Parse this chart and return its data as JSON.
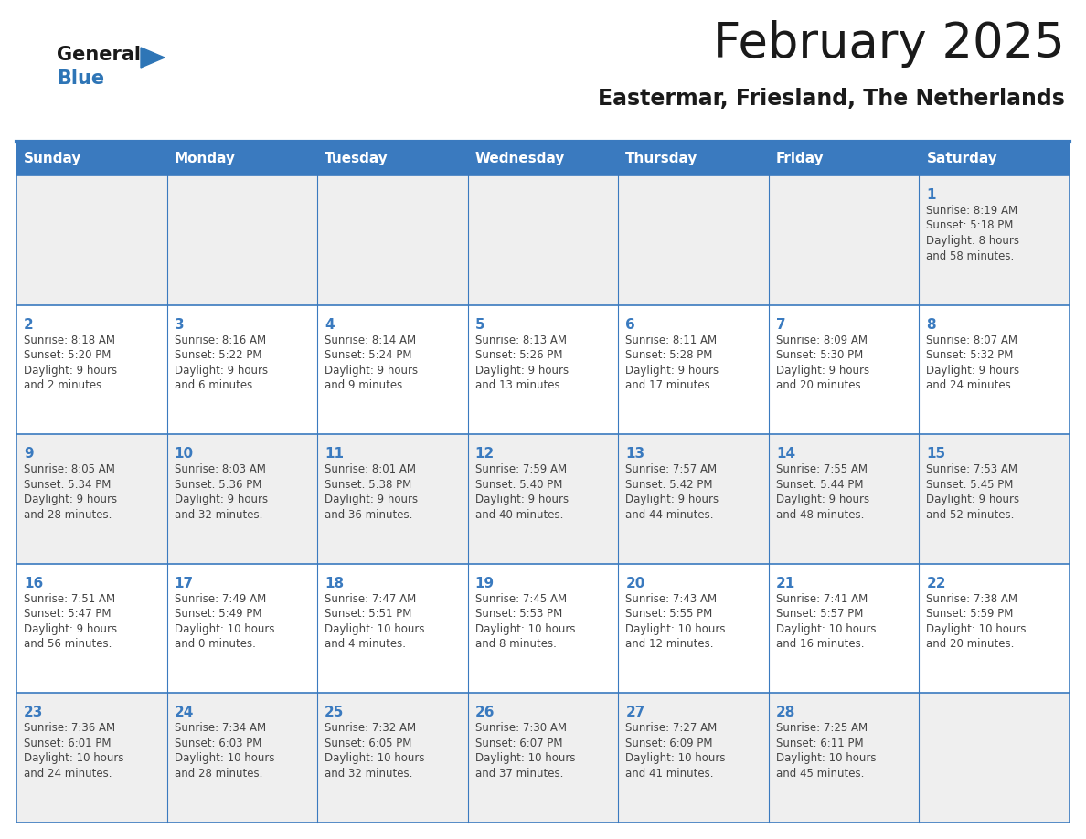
{
  "title": "February 2025",
  "subtitle": "Eastermar, Friesland, The Netherlands",
  "days_of_week": [
    "Sunday",
    "Monday",
    "Tuesday",
    "Wednesday",
    "Thursday",
    "Friday",
    "Saturday"
  ],
  "header_bg": "#3a7abf",
  "header_text": "#ffffff",
  "cell_bg_light": "#efefef",
  "cell_bg_white": "#ffffff",
  "cell_border": "#3a7abf",
  "day_number_color": "#3a7abf",
  "text_color": "#444444",
  "title_color": "#1a1a1a",
  "logo_general_color": "#1a1a1a",
  "logo_blue_color": "#2e75b6",
  "calendar_data": [
    {
      "day": 1,
      "col": 6,
      "row": 0,
      "sunrise": "8:19 AM",
      "sunset": "5:18 PM",
      "daylight_h": "8 hours",
      "daylight_m": "and 58 minutes."
    },
    {
      "day": 2,
      "col": 0,
      "row": 1,
      "sunrise": "8:18 AM",
      "sunset": "5:20 PM",
      "daylight_h": "9 hours",
      "daylight_m": "and 2 minutes."
    },
    {
      "day": 3,
      "col": 1,
      "row": 1,
      "sunrise": "8:16 AM",
      "sunset": "5:22 PM",
      "daylight_h": "9 hours",
      "daylight_m": "and 6 minutes."
    },
    {
      "day": 4,
      "col": 2,
      "row": 1,
      "sunrise": "8:14 AM",
      "sunset": "5:24 PM",
      "daylight_h": "9 hours",
      "daylight_m": "and 9 minutes."
    },
    {
      "day": 5,
      "col": 3,
      "row": 1,
      "sunrise": "8:13 AM",
      "sunset": "5:26 PM",
      "daylight_h": "9 hours",
      "daylight_m": "and 13 minutes."
    },
    {
      "day": 6,
      "col": 4,
      "row": 1,
      "sunrise": "8:11 AM",
      "sunset": "5:28 PM",
      "daylight_h": "9 hours",
      "daylight_m": "and 17 minutes."
    },
    {
      "day": 7,
      "col": 5,
      "row": 1,
      "sunrise": "8:09 AM",
      "sunset": "5:30 PM",
      "daylight_h": "9 hours",
      "daylight_m": "and 20 minutes."
    },
    {
      "day": 8,
      "col": 6,
      "row": 1,
      "sunrise": "8:07 AM",
      "sunset": "5:32 PM",
      "daylight_h": "9 hours",
      "daylight_m": "and 24 minutes."
    },
    {
      "day": 9,
      "col": 0,
      "row": 2,
      "sunrise": "8:05 AM",
      "sunset": "5:34 PM",
      "daylight_h": "9 hours",
      "daylight_m": "and 28 minutes."
    },
    {
      "day": 10,
      "col": 1,
      "row": 2,
      "sunrise": "8:03 AM",
      "sunset": "5:36 PM",
      "daylight_h": "9 hours",
      "daylight_m": "and 32 minutes."
    },
    {
      "day": 11,
      "col": 2,
      "row": 2,
      "sunrise": "8:01 AM",
      "sunset": "5:38 PM",
      "daylight_h": "9 hours",
      "daylight_m": "and 36 minutes."
    },
    {
      "day": 12,
      "col": 3,
      "row": 2,
      "sunrise": "7:59 AM",
      "sunset": "5:40 PM",
      "daylight_h": "9 hours",
      "daylight_m": "and 40 minutes."
    },
    {
      "day": 13,
      "col": 4,
      "row": 2,
      "sunrise": "7:57 AM",
      "sunset": "5:42 PM",
      "daylight_h": "9 hours",
      "daylight_m": "and 44 minutes."
    },
    {
      "day": 14,
      "col": 5,
      "row": 2,
      "sunrise": "7:55 AM",
      "sunset": "5:44 PM",
      "daylight_h": "9 hours",
      "daylight_m": "and 48 minutes."
    },
    {
      "day": 15,
      "col": 6,
      "row": 2,
      "sunrise": "7:53 AM",
      "sunset": "5:45 PM",
      "daylight_h": "9 hours",
      "daylight_m": "and 52 minutes."
    },
    {
      "day": 16,
      "col": 0,
      "row": 3,
      "sunrise": "7:51 AM",
      "sunset": "5:47 PM",
      "daylight_h": "9 hours",
      "daylight_m": "and 56 minutes."
    },
    {
      "day": 17,
      "col": 1,
      "row": 3,
      "sunrise": "7:49 AM",
      "sunset": "5:49 PM",
      "daylight_h": "10 hours",
      "daylight_m": "and 0 minutes."
    },
    {
      "day": 18,
      "col": 2,
      "row": 3,
      "sunrise": "7:47 AM",
      "sunset": "5:51 PM",
      "daylight_h": "10 hours",
      "daylight_m": "and 4 minutes."
    },
    {
      "day": 19,
      "col": 3,
      "row": 3,
      "sunrise": "7:45 AM",
      "sunset": "5:53 PM",
      "daylight_h": "10 hours",
      "daylight_m": "and 8 minutes."
    },
    {
      "day": 20,
      "col": 4,
      "row": 3,
      "sunrise": "7:43 AM",
      "sunset": "5:55 PM",
      "daylight_h": "10 hours",
      "daylight_m": "and 12 minutes."
    },
    {
      "day": 21,
      "col": 5,
      "row": 3,
      "sunrise": "7:41 AM",
      "sunset": "5:57 PM",
      "daylight_h": "10 hours",
      "daylight_m": "and 16 minutes."
    },
    {
      "day": 22,
      "col": 6,
      "row": 3,
      "sunrise": "7:38 AM",
      "sunset": "5:59 PM",
      "daylight_h": "10 hours",
      "daylight_m": "and 20 minutes."
    },
    {
      "day": 23,
      "col": 0,
      "row": 4,
      "sunrise": "7:36 AM",
      "sunset": "6:01 PM",
      "daylight_h": "10 hours",
      "daylight_m": "and 24 minutes."
    },
    {
      "day": 24,
      "col": 1,
      "row": 4,
      "sunrise": "7:34 AM",
      "sunset": "6:03 PM",
      "daylight_h": "10 hours",
      "daylight_m": "and 28 minutes."
    },
    {
      "day": 25,
      "col": 2,
      "row": 4,
      "sunrise": "7:32 AM",
      "sunset": "6:05 PM",
      "daylight_h": "10 hours",
      "daylight_m": "and 32 minutes."
    },
    {
      "day": 26,
      "col": 3,
      "row": 4,
      "sunrise": "7:30 AM",
      "sunset": "6:07 PM",
      "daylight_h": "10 hours",
      "daylight_m": "and 37 minutes."
    },
    {
      "day": 27,
      "col": 4,
      "row": 4,
      "sunrise": "7:27 AM",
      "sunset": "6:09 PM",
      "daylight_h": "10 hours",
      "daylight_m": "and 41 minutes."
    },
    {
      "day": 28,
      "col": 5,
      "row": 4,
      "sunrise": "7:25 AM",
      "sunset": "6:11 PM",
      "daylight_h": "10 hours",
      "daylight_m": "and 45 minutes."
    }
  ],
  "num_rows": 5,
  "num_cols": 7
}
